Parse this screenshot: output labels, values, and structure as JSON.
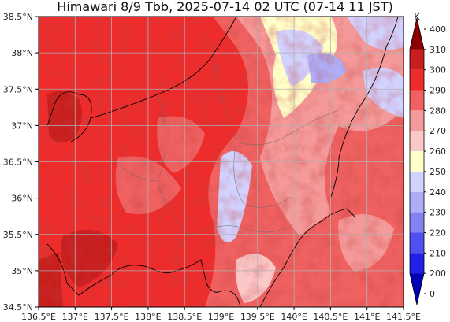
{
  "title": "Himawari 8/9 Tbb, 2025-07-14 02 UTC (07-14 11 JST)",
  "map": {
    "lon_range": [
      136.5,
      141.5
    ],
    "lat_range": [
      34.5,
      38.5
    ],
    "lon_ticks": [
      "136.5°E",
      "137°E",
      "137.5°E",
      "138°E",
      "138.5°E",
      "139°E",
      "139.5°E",
      "140°E",
      "140.5°E",
      "141°E",
      "141.5°E"
    ],
    "lat_ticks": [
      "38.5°N",
      "38°N",
      "37.5°N",
      "37°N",
      "36.5°N",
      "36°N",
      "35.5°N",
      "35°N",
      "34.5°N"
    ],
    "grid": true
  },
  "colorbar": {
    "unit": "K",
    "levels": [
      "400",
      "310",
      "300",
      "290",
      "280",
      "270",
      "260",
      "250",
      "240",
      "230",
      "220",
      "210",
      "200",
      "0"
    ],
    "colors": [
      "#8b0000",
      "#c81e1e",
      "#ee2c2c",
      "#f06262",
      "#f59a9a",
      "#fbc8c8",
      "#ffffc8",
      "#d2d2ff",
      "#aeaef8",
      "#8282f0",
      "#5050f0",
      "#2020e8",
      "#0000b4"
    ]
  }
}
